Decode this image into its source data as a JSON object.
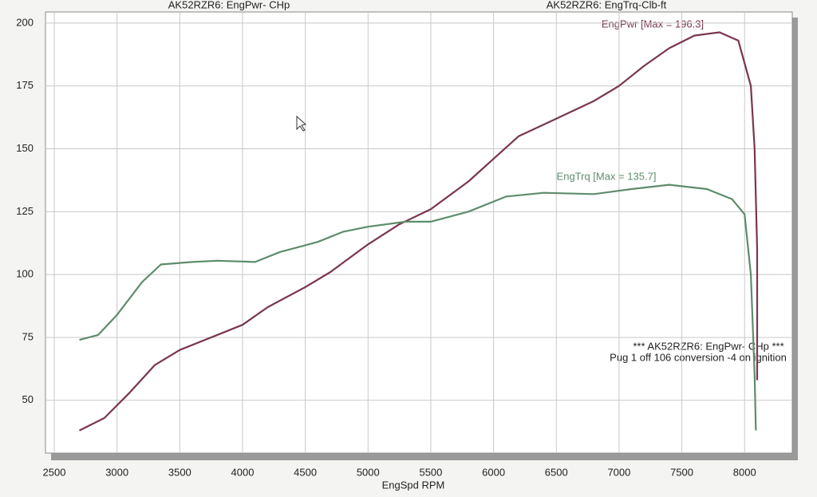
{
  "chart_data": {
    "type": "line",
    "titles": [
      "AK52RZR6: EngPwr- CHp",
      "AK52RZR6: EngTrq-Clb-ft"
    ],
    "x_label": "EngSpd  RPM",
    "annotations": [
      "EngPwr [Max = 196.3]",
      "EngTrq [Max = 135.7]"
    ],
    "notes": [
      "*** AK52RZR6: EngPwr- CHp  ***",
      "Pug 1 off 106 conversion -4 on ignition"
    ],
    "xlim": [
      2430,
      8380
    ],
    "ylim": [
      29,
      204.4
    ],
    "xticks": [
      2500,
      3000,
      3500,
      4000,
      4500,
      5000,
      5500,
      6000,
      6500,
      7000,
      7500,
      8000
    ],
    "yticks": [
      50,
      75,
      100,
      125,
      150,
      175,
      200
    ],
    "grid": true,
    "series": [
      {
        "name": "EngPwr",
        "color": "#7a3552",
        "x": [
          2700,
          2900,
          3100,
          3300,
          3500,
          3800,
          4000,
          4200,
          4500,
          4700,
          5000,
          5250,
          5500,
          5800,
          6000,
          6200,
          6500,
          6800,
          7000,
          7200,
          7400,
          7600,
          7800,
          7950,
          8050,
          8080,
          8100,
          8100
        ],
        "values": [
          38,
          43,
          53,
          64,
          70,
          76,
          80,
          87,
          95,
          101,
          112,
          120,
          126,
          137,
          146,
          155,
          162,
          169,
          175,
          183,
          190,
          195,
          196.3,
          193,
          175,
          150,
          110,
          58
        ]
      },
      {
        "name": "EngTrq",
        "color": "#5e8c6c",
        "x": [
          2700,
          2850,
          3000,
          3200,
          3350,
          3600,
          3800,
          4100,
          4300,
          4600,
          4800,
          5000,
          5300,
          5500,
          5800,
          6100,
          6400,
          6800,
          7100,
          7400,
          7700,
          7900,
          8000,
          8050,
          8080,
          8090
        ],
        "values": [
          74,
          76,
          84,
          97,
          104,
          105,
          105.5,
          105,
          109,
          113,
          117,
          119,
          121,
          121,
          125,
          131,
          132.5,
          132,
          134,
          135.7,
          134,
          130,
          124,
          100,
          60,
          38
        ]
      }
    ]
  }
}
